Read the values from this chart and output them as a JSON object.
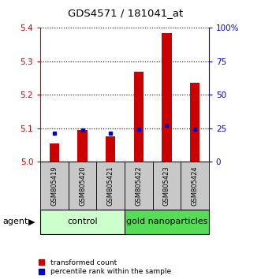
{
  "title": "GDS4571 / 181041_at",
  "samples": [
    "GSM805419",
    "GSM805420",
    "GSM805421",
    "GSM805422",
    "GSM805423",
    "GSM805424"
  ],
  "red_values": [
    5.055,
    5.095,
    5.075,
    5.27,
    5.385,
    5.235
  ],
  "blue_values": [
    5.085,
    5.095,
    5.085,
    5.098,
    5.108,
    5.098
  ],
  "y_min": 5.0,
  "y_max": 5.4,
  "y_ticks": [
    5.0,
    5.1,
    5.2,
    5.3,
    5.4
  ],
  "y2_ticks": [
    0,
    25,
    50,
    75,
    100
  ],
  "y2_labels": [
    "0",
    "25",
    "50",
    "75",
    "100%"
  ],
  "group_labels": [
    "control",
    "gold nanoparticles"
  ],
  "agent_label": "agent",
  "legend_red": "transformed count",
  "legend_blue": "percentile rank within the sample",
  "red_color": "#cc0000",
  "blue_color": "#0000cc",
  "tick_color_left": "#cc0000",
  "tick_color_right": "#0000cc",
  "sample_box_color": "#c8c8c8",
  "control_bg": "#ccffcc",
  "gold_bg": "#55dd55",
  "n_control": 3,
  "n_gold": 3
}
